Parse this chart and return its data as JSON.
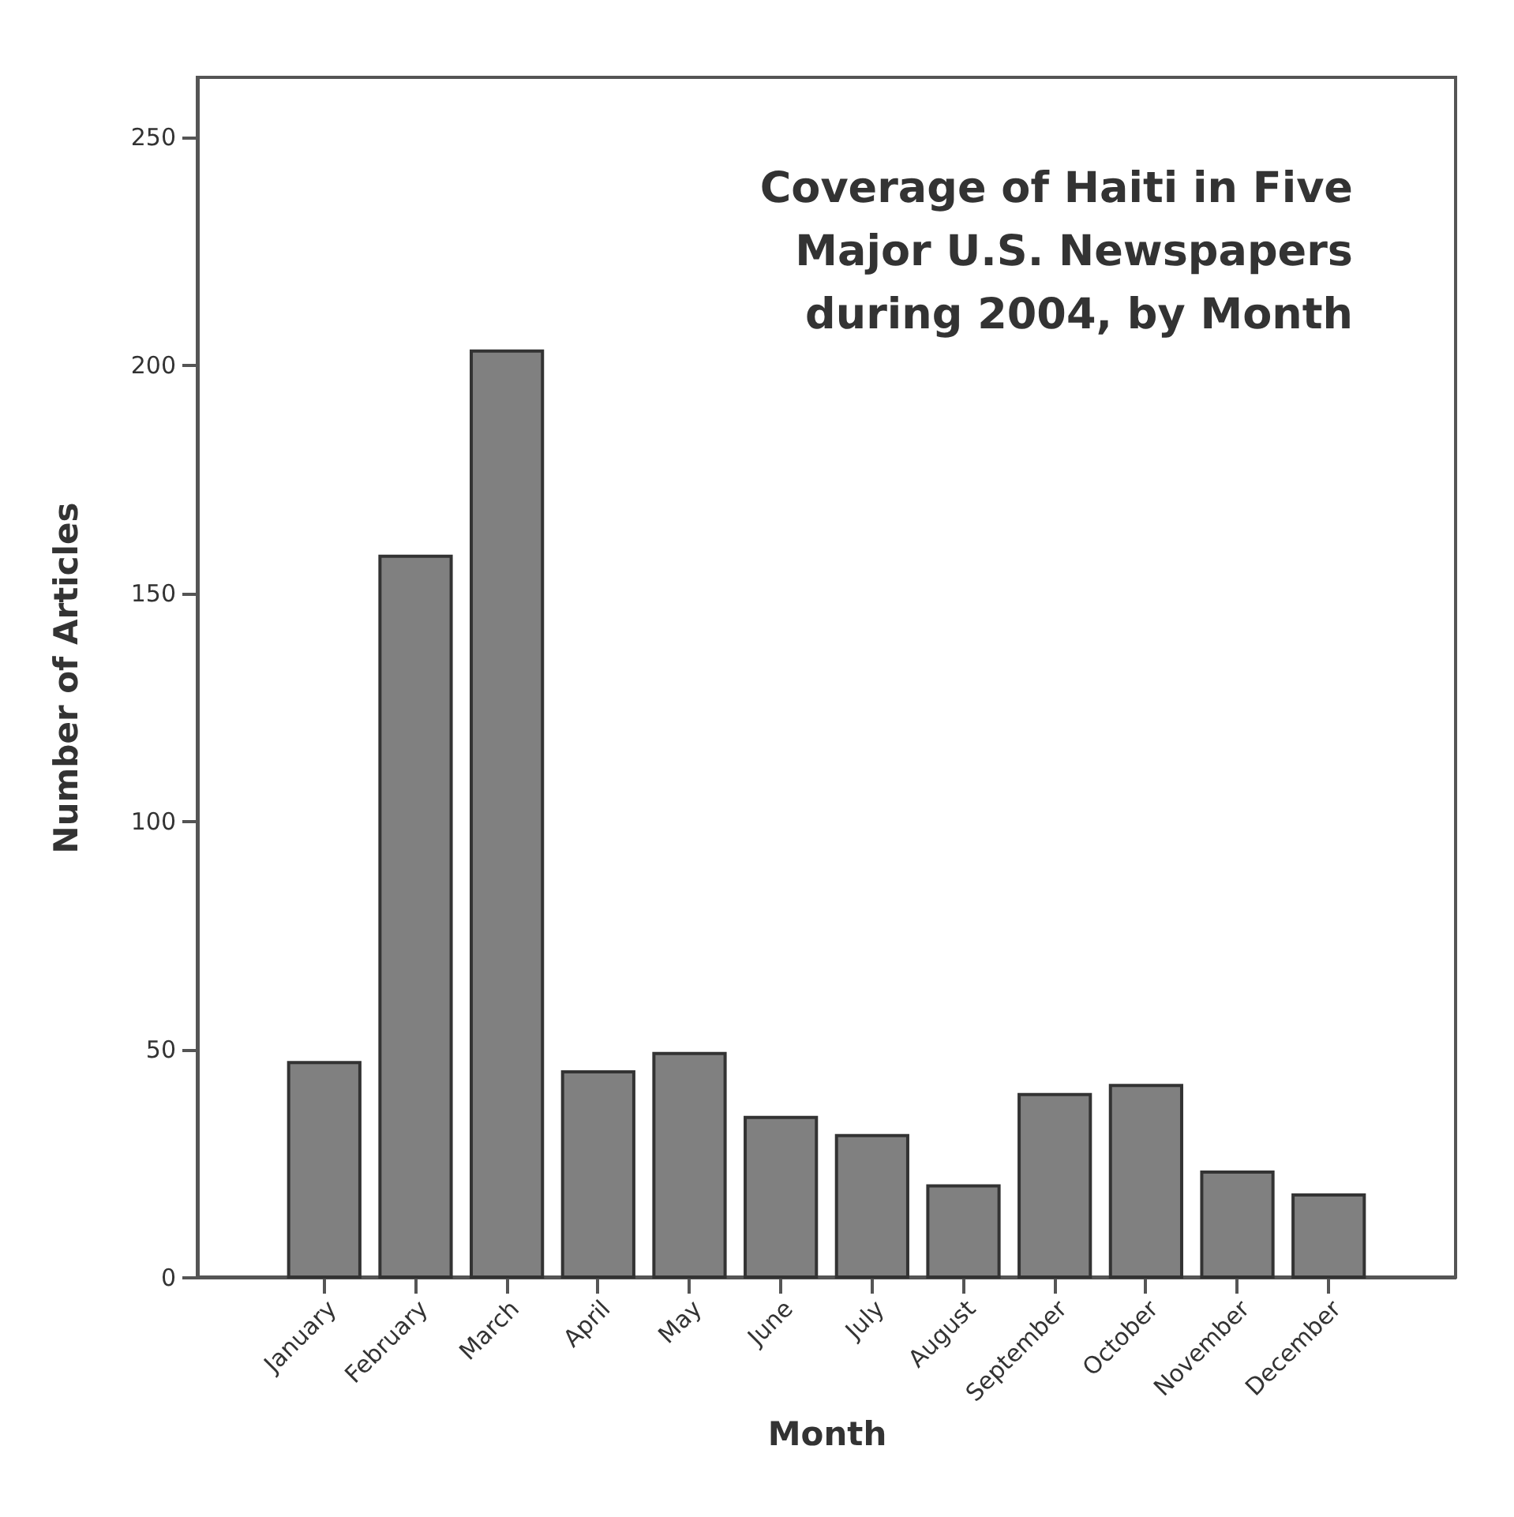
{
  "chart_data": {
    "type": "bar",
    "title": "Coverage of Haiti in Five\nMajor U.S. Newspapers\nduring 2004, by Month",
    "xlabel": "Month",
    "ylabel": "Number of Articles",
    "categories": [
      "January",
      "February",
      "March",
      "April",
      "May",
      "June",
      "July",
      "August",
      "September",
      "October",
      "November",
      "December"
    ],
    "values": [
      47,
      158,
      203,
      45,
      49,
      35,
      31,
      20,
      40,
      42,
      23,
      18
    ],
    "color": "#808080",
    "ylim": [
      0,
      263
    ],
    "yticks": [
      0,
      50,
      100,
      150,
      200,
      250
    ],
    "grid": false
  }
}
